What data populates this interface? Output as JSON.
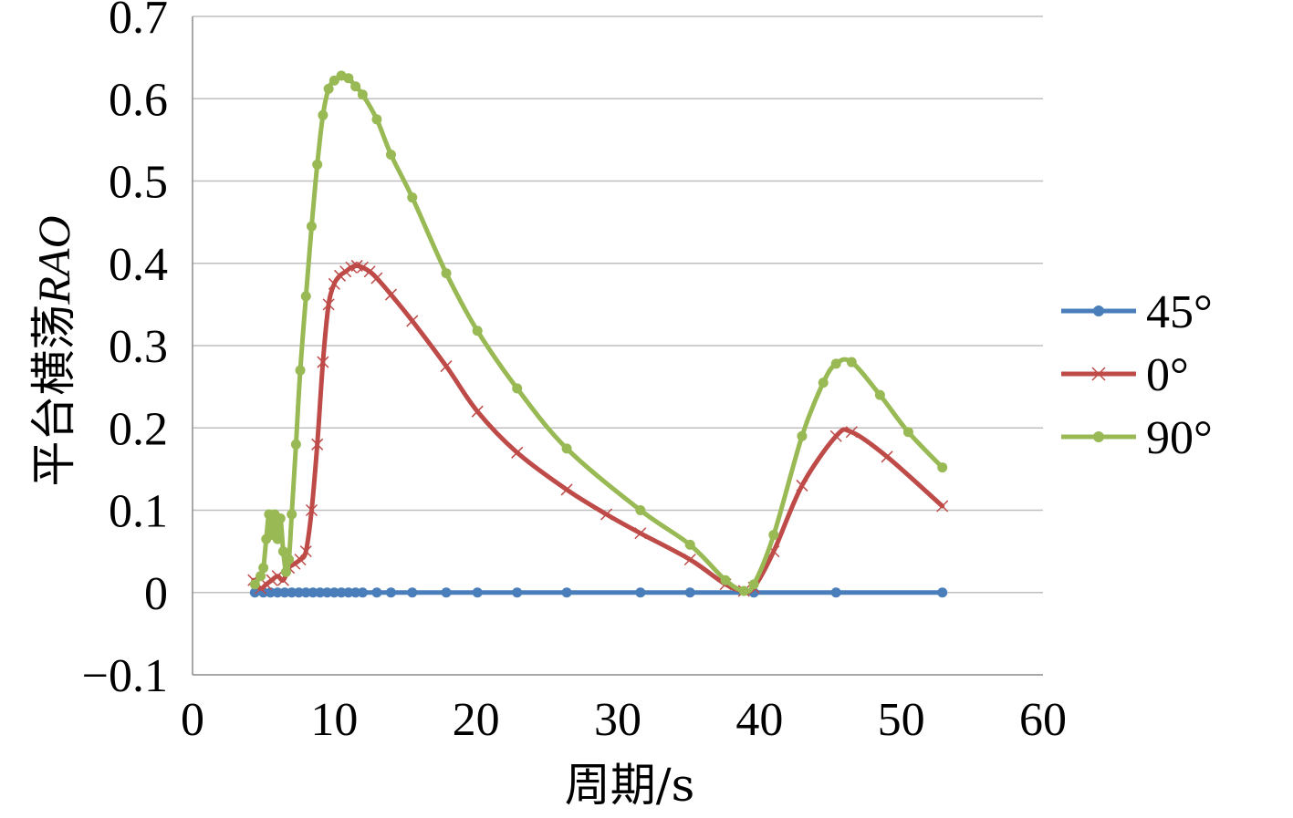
{
  "chart_data": {
    "type": "line",
    "xlabel": "周期/s",
    "ylabel_main": "平台横荡",
    "ylabel_italic": "RAO",
    "xlim": [
      0,
      60
    ],
    "ylim": [
      -0.1,
      0.7
    ],
    "x_ticks": [
      "0",
      "10",
      "20",
      "30",
      "40",
      "50",
      "60"
    ],
    "y_ticks": [
      "−0.1",
      "0",
      "0.1",
      "0.2",
      "0.3",
      "0.4",
      "0.5",
      "0.6",
      "0.7"
    ],
    "grid": "horizontal",
    "legend_position": "right",
    "series": [
      {
        "name": "45°",
        "color": "#4a7ebb",
        "marker": "dot",
        "x": [
          4.4,
          5.0,
          5.5,
          6.0,
          6.5,
          7.0,
          7.5,
          8.0,
          8.5,
          9.0,
          9.5,
          10.0,
          10.5,
          11.0,
          11.5,
          12.0,
          13.0,
          14.0,
          15.5,
          17.9,
          20.1,
          22.9,
          26.4,
          31.6,
          35.1,
          39.6,
          45.4,
          52.9
        ],
        "y": [
          0.0,
          0.0,
          0.0,
          0.0,
          0.0,
          0.0,
          0.0,
          0.0,
          0.0,
          0.0,
          0.0,
          0.0,
          0.0,
          0.0,
          0.0,
          0.0,
          0.0,
          0.0,
          0.0,
          0.0,
          0.0,
          0.0,
          0.0,
          0.0,
          0.0,
          0.0,
          0.0,
          0.0
        ]
      },
      {
        "name": "0°",
        "color": "#be4b48",
        "marker": "x",
        "x": [
          4.3,
          4.8,
          5.2,
          5.6,
          6.0,
          6.4,
          6.8,
          7.2,
          7.6,
          8.0,
          8.4,
          8.8,
          9.2,
          9.6,
          10.0,
          10.4,
          10.8,
          11.2,
          11.6,
          12.0,
          12.5,
          13.0,
          14.0,
          15.5,
          17.9,
          20.1,
          22.9,
          26.4,
          29.2,
          31.6,
          35.1,
          37.6,
          38.9,
          39.6,
          41.0,
          43.0,
          45.4,
          46.5,
          49.0,
          52.9
        ],
        "y": [
          0.015,
          0.005,
          0.01,
          0.015,
          0.02,
          0.015,
          0.03,
          0.035,
          0.04,
          0.05,
          0.1,
          0.18,
          0.28,
          0.35,
          0.375,
          0.385,
          0.39,
          0.395,
          0.397,
          0.395,
          0.39,
          0.382,
          0.362,
          0.33,
          0.275,
          0.22,
          0.17,
          0.125,
          0.095,
          0.072,
          0.04,
          0.01,
          0.002,
          0.006,
          0.05,
          0.13,
          0.19,
          0.195,
          0.165,
          0.105
        ]
      },
      {
        "name": "90°",
        "color": "#98b954",
        "marker": "dot",
        "x": [
          4.4,
          4.8,
          5.0,
          5.2,
          5.4,
          5.6,
          5.8,
          6.0,
          6.2,
          6.4,
          6.6,
          6.8,
          7.0,
          7.3,
          7.6,
          8.0,
          8.4,
          8.8,
          9.2,
          9.6,
          10.0,
          10.5,
          11.0,
          11.5,
          12.0,
          13.0,
          14.0,
          15.5,
          17.9,
          20.1,
          22.9,
          26.4,
          31.6,
          35.1,
          37.6,
          38.9,
          39.6,
          41.0,
          43.0,
          44.5,
          45.4,
          46.5,
          48.5,
          50.5,
          52.9
        ],
        "y": [
          0.01,
          0.02,
          0.03,
          0.065,
          0.095,
          0.07,
          0.095,
          0.065,
          0.09,
          0.05,
          0.025,
          0.04,
          0.095,
          0.18,
          0.27,
          0.36,
          0.445,
          0.52,
          0.58,
          0.612,
          0.622,
          0.628,
          0.625,
          0.615,
          0.605,
          0.575,
          0.532,
          0.48,
          0.388,
          0.318,
          0.248,
          0.175,
          0.1,
          0.058,
          0.015,
          0.002,
          0.01,
          0.07,
          0.19,
          0.255,
          0.278,
          0.28,
          0.24,
          0.195,
          0.152
        ]
      }
    ]
  }
}
